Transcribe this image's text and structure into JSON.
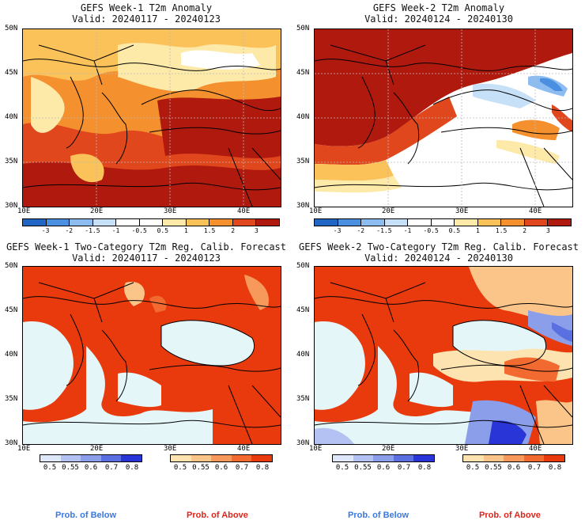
{
  "panels": [
    {
      "id": "p1",
      "title_line1": "GEFS Week-1 T2m Anomaly",
      "title_line2": "Valid: 20240117 - 20240123"
    },
    {
      "id": "p2",
      "title_line1": "GEFS Week-2 T2m Anomaly",
      "title_line2": "Valid: 20240124 - 20240130"
    },
    {
      "id": "p3",
      "title_line1": "GEFS Week-1 Two-Category T2m Reg. Calib. Forecast",
      "title_line2": "Valid: 20240117 - 20240123"
    },
    {
      "id": "p4",
      "title_line1": "GEFS Week-2 Two-Category T2m Reg. Calib. Forecast",
      "title_line2": "Valid: 20240124 - 20240130"
    }
  ],
  "lat_labels": [
    "50N",
    "45N",
    "40N",
    "35N",
    "30N"
  ],
  "lon_labels": [
    "10E",
    "20E",
    "30E",
    "40E"
  ],
  "anomaly_colorbar": {
    "labels": [
      "-3",
      "-2",
      "-1.5",
      "-1",
      "-0.5",
      "0.5",
      "1",
      "1.5",
      "2",
      "3"
    ],
    "colors": [
      "#2166c4",
      "#4a8fe0",
      "#8dbcf0",
      "#c6e0f8",
      "#ffffff",
      "#ffffff",
      "#fde9a8",
      "#fbc25a",
      "#f5902f",
      "#e0471c",
      "#b01a0e"
    ]
  },
  "prob_below_bar": {
    "labels": [
      "0.5",
      "0.55",
      "0.6",
      "0.7",
      "0.8"
    ],
    "colors": [
      "#dfe7fb",
      "#b3c2f2",
      "#8a9eea",
      "#5a6fe0",
      "#2a35d8"
    ]
  },
  "prob_above_bar": {
    "labels": [
      "0.5",
      "0.55",
      "0.6",
      "0.7",
      "0.8"
    ],
    "colors": [
      "#fde3b0",
      "#fbc58a",
      "#f7995a",
      "#f26a30",
      "#e83a0c"
    ]
  },
  "legends": {
    "below": "Prob. of Below",
    "above": "Prob. of Above"
  },
  "legend_colors": {
    "below": "#3a78e0",
    "above": "#e0241a"
  }
}
